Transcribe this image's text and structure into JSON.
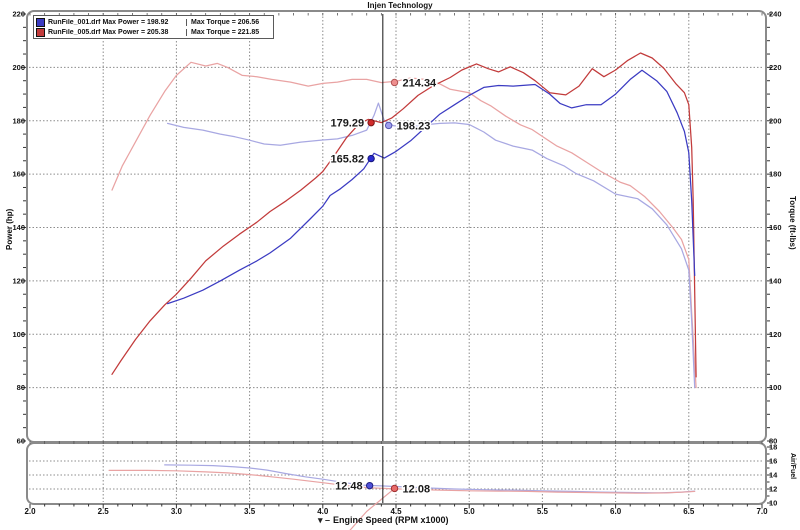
{
  "title": "Injen Technology",
  "legend": {
    "entries": [
      {
        "file_power": "RunFile_001.drf Max Power = 198.92",
        "torque": "Max Torque = 206.56",
        "color": "#3b3bc2",
        "max_power": 198.92,
        "max_torque": 206.56
      },
      {
        "file_power": "RunFile_005.drf Max Power = 205.38",
        "torque": "Max Torque = 221.85",
        "color": "#c23b3b",
        "max_power": 205.38,
        "max_torque": 221.85
      }
    ]
  },
  "axes": {
    "power_label": "Power (hp)",
    "torque_label": "Torque (ft-lbs)",
    "af_label": "Air/Fuel",
    "x_label": "Engine Speed (RPM x1000)",
    "cursor_prefix": "▾ –"
  },
  "cursor": {
    "rpm": 4.41
  },
  "chart_data": {
    "type": "line",
    "x_axis": {
      "label": "Engine Speed (RPM x1000)",
      "range": [
        2.0,
        7.0
      ],
      "ticks": [
        "2.0",
        "2.5",
        "3.0",
        "3.5",
        "4.0",
        "4.5",
        "5.0",
        "5.5",
        "6.0",
        "6.5",
        "7.0"
      ]
    },
    "main_panel": {
      "power_axis": {
        "label": "Power (hp)",
        "range": [
          60,
          220
        ],
        "ticks": [
          220,
          200,
          180,
          160,
          140,
          120,
          100,
          80,
          60
        ]
      },
      "torque_axis": {
        "label": "Torque (ft-lbs)",
        "range": [
          80,
          240
        ],
        "ticks": [
          240,
          220,
          200,
          180,
          160,
          140,
          120,
          100,
          80
        ]
      },
      "grid": "dashed",
      "series": [
        {
          "name": "red_torque",
          "run": "RunFile_005.drf",
          "axis": "torque",
          "color": "#e9a3a3",
          "points": [
            [
              2.56,
              174
            ],
            [
              2.63,
              183
            ],
            [
              2.72,
              192
            ],
            [
              2.82,
              202
            ],
            [
              2.92,
              211
            ],
            [
              3.0,
              217
            ],
            [
              3.1,
              221.9
            ],
            [
              3.2,
              220.5
            ],
            [
              3.28,
              221.5
            ],
            [
              3.35,
              220
            ],
            [
              3.45,
              217
            ],
            [
              3.55,
              216.5
            ],
            [
              3.65,
              215.5
            ],
            [
              3.78,
              214.5
            ],
            [
              3.9,
              213
            ],
            [
              4.0,
              214
            ],
            [
              4.1,
              214.5
            ],
            [
              4.2,
              215.5
            ],
            [
              4.3,
              215.5
            ],
            [
              4.4,
              214.3
            ],
            [
              4.5,
              214.8
            ],
            [
              4.6,
              216
            ],
            [
              4.7,
              215.5
            ],
            [
              4.8,
              213.8
            ],
            [
              4.87,
              211.8
            ],
            [
              5.0,
              210.5
            ],
            [
              5.08,
              207.5
            ],
            [
              5.15,
              205.5
            ],
            [
              5.25,
              201.7
            ],
            [
              5.35,
              198.5
            ],
            [
              5.43,
              196.7
            ],
            [
              5.53,
              193
            ],
            [
              5.6,
              190.5
            ],
            [
              5.7,
              188
            ],
            [
              5.8,
              184.5
            ],
            [
              5.9,
              181
            ],
            [
              6.03,
              177
            ],
            [
              6.1,
              175.7
            ],
            [
              6.2,
              171.5
            ],
            [
              6.3,
              166
            ],
            [
              6.39,
              160
            ],
            [
              6.45,
              155.5
            ],
            [
              6.5,
              148
            ],
            [
              6.52,
              128
            ],
            [
              6.55,
              100
            ]
          ]
        },
        {
          "name": "blue_torque",
          "run": "RunFile_001.drf",
          "axis": "torque",
          "color": "#a8a8e2",
          "points": [
            [
              2.94,
              199
            ],
            [
              3.05,
              197.5
            ],
            [
              3.18,
              196.5
            ],
            [
              3.3,
              195
            ],
            [
              3.4,
              194
            ],
            [
              3.5,
              192.7
            ],
            [
              3.6,
              191.3
            ],
            [
              3.71,
              190.8
            ],
            [
              3.85,
              192
            ],
            [
              4.0,
              192.8
            ],
            [
              4.1,
              193.2
            ],
            [
              4.2,
              194.5
            ],
            [
              4.3,
              196.5
            ],
            [
              4.35,
              202
            ],
            [
              4.38,
              206.6
            ],
            [
              4.42,
              200
            ],
            [
              4.48,
              198.2
            ],
            [
              4.58,
              197.5
            ],
            [
              4.7,
              198.5
            ],
            [
              4.8,
              199
            ],
            [
              4.9,
              199.2
            ],
            [
              5.0,
              198.6
            ],
            [
              5.1,
              195.8
            ],
            [
              5.18,
              192.7
            ],
            [
              5.3,
              190.5
            ],
            [
              5.43,
              189
            ],
            [
              5.53,
              185.8
            ],
            [
              5.65,
              183
            ],
            [
              5.73,
              180.2
            ],
            [
              5.85,
              177.5
            ],
            [
              6.0,
              172.5
            ],
            [
              6.15,
              170.8
            ],
            [
              6.25,
              167
            ],
            [
              6.35,
              161
            ],
            [
              6.45,
              152
            ],
            [
              6.5,
              144
            ],
            [
              6.52,
              125
            ],
            [
              6.54,
              100
            ]
          ]
        },
        {
          "name": "red_power",
          "run": "RunFile_005.drf",
          "axis": "power",
          "color": "#c23b3b",
          "points": [
            [
              2.56,
              85
            ],
            [
              2.62,
              90
            ],
            [
              2.72,
              98
            ],
            [
              2.82,
              105
            ],
            [
              2.92,
              111
            ],
            [
              3.0,
              115
            ],
            [
              3.1,
              121
            ],
            [
              3.2,
              127.5
            ],
            [
              3.32,
              133
            ],
            [
              3.43,
              137.5
            ],
            [
              3.55,
              142
            ],
            [
              3.64,
              146
            ],
            [
              3.75,
              150
            ],
            [
              3.85,
              154
            ],
            [
              3.95,
              158.5
            ],
            [
              4.0,
              161
            ],
            [
              4.08,
              167
            ],
            [
              4.16,
              173.5
            ],
            [
              4.25,
              179
            ],
            [
              4.31,
              180.5
            ],
            [
              4.4,
              179.3
            ],
            [
              4.47,
              181
            ],
            [
              4.55,
              184.5
            ],
            [
              4.65,
              189.5
            ],
            [
              4.75,
              193
            ],
            [
              4.87,
              196.2
            ],
            [
              4.95,
              199
            ],
            [
              5.05,
              201.3
            ],
            [
              5.13,
              199.5
            ],
            [
              5.2,
              198.3
            ],
            [
              5.28,
              200.2
            ],
            [
              5.37,
              198
            ],
            [
              5.45,
              195
            ],
            [
              5.55,
              190.5
            ],
            [
              5.66,
              189.7
            ],
            [
              5.75,
              193
            ],
            [
              5.84,
              199.5
            ],
            [
              5.92,
              196.5
            ],
            [
              6.0,
              199
            ],
            [
              6.08,
              202.5
            ],
            [
              6.17,
              205.4
            ],
            [
              6.25,
              203.5
            ],
            [
              6.33,
              199.6
            ],
            [
              6.41,
              194
            ],
            [
              6.47,
              190.5
            ],
            [
              6.5,
              186
            ],
            [
              6.52,
              170
            ],
            [
              6.53,
              150
            ],
            [
              6.55,
              84
            ]
          ]
        },
        {
          "name": "blue_power",
          "run": "RunFile_001.drf",
          "axis": "power",
          "color": "#3b3bc2",
          "points": [
            [
              2.94,
              111.5
            ],
            [
              3.05,
              113.5
            ],
            [
              3.18,
              116.5
            ],
            [
              3.3,
              120
            ],
            [
              3.43,
              124
            ],
            [
              3.55,
              127.5
            ],
            [
              3.64,
              130.5
            ],
            [
              3.78,
              136
            ],
            [
              3.91,
              143
            ],
            [
              4.0,
              148
            ],
            [
              4.05,
              152
            ],
            [
              4.12,
              154.5
            ],
            [
              4.2,
              158
            ],
            [
              4.28,
              162
            ],
            [
              4.35,
              167.8
            ],
            [
              4.42,
              166
            ],
            [
              4.5,
              168.5
            ],
            [
              4.6,
              172.5
            ],
            [
              4.7,
              177.5
            ],
            [
              4.8,
              182.5
            ],
            [
              4.9,
              186
            ],
            [
              5.0,
              189.5
            ],
            [
              5.1,
              192.5
            ],
            [
              5.2,
              193.2
            ],
            [
              5.3,
              193
            ],
            [
              5.45,
              193.6
            ],
            [
              5.55,
              190
            ],
            [
              5.62,
              186.5
            ],
            [
              5.7,
              184.8
            ],
            [
              5.8,
              186
            ],
            [
              5.9,
              186
            ],
            [
              6.0,
              190
            ],
            [
              6.1,
              195.5
            ],
            [
              6.18,
              198.9
            ],
            [
              6.28,
              195
            ],
            [
              6.35,
              191
            ],
            [
              6.42,
              183
            ],
            [
              6.47,
              176
            ],
            [
              6.5,
              168
            ],
            [
              6.52,
              150
            ],
            [
              6.54,
              122
            ]
          ]
        }
      ],
      "markers": [
        {
          "series": "red_power",
          "rpm": 4.33,
          "value": 179.29,
          "label": "179.29",
          "side": "left",
          "axis": "power",
          "color": "#d12b2b",
          "edge": "#7a1515"
        },
        {
          "series": "blue_power",
          "rpm": 4.33,
          "value": 165.82,
          "label": "165.82",
          "side": "left",
          "axis": "power",
          "color": "#2b2bd1",
          "edge": "#15157a"
        },
        {
          "series": "red_torque",
          "rpm": 4.49,
          "value": 214.34,
          "label": "214.34",
          "side": "right",
          "axis": "torque",
          "color": "#ef8f8f",
          "edge": "#b05555"
        },
        {
          "series": "blue_torque",
          "rpm": 4.45,
          "value": 198.23,
          "label": "198.23",
          "side": "right",
          "axis": "torque",
          "color": "#9f9fef",
          "edge": "#5555b0"
        }
      ]
    },
    "af_panel": {
      "af_axis": {
        "label": "Air/Fuel",
        "range": [
          10,
          18
        ],
        "ticks": [
          18,
          16,
          14,
          12,
          10
        ]
      },
      "series": [
        {
          "name": "blue_af",
          "run": "RunFile_001.drf",
          "color": "#a8a8e2",
          "points": [
            [
              2.92,
              15.45
            ],
            [
              3.1,
              15.4
            ],
            [
              3.25,
              15.35
            ],
            [
              3.4,
              15.15
            ],
            [
              3.5,
              15.0
            ],
            [
              3.62,
              14.7
            ],
            [
              3.75,
              14.2
            ],
            [
              3.88,
              13.75
            ],
            [
              4.0,
              13.4
            ],
            [
              4.15,
              12.9
            ],
            [
              4.27,
              12.55
            ],
            [
              4.4,
              12.45
            ],
            [
              4.55,
              12.3
            ],
            [
              4.7,
              12.15
            ],
            [
              4.9,
              12.0
            ],
            [
              5.1,
              11.9
            ],
            [
              5.3,
              11.85
            ],
            [
              5.5,
              11.75
            ],
            [
              5.7,
              11.65
            ],
            [
              5.9,
              11.55
            ],
            [
              6.1,
              11.5
            ],
            [
              6.3,
              11.45
            ],
            [
              6.45,
              11.55
            ],
            [
              6.54,
              11.7
            ]
          ]
        },
        {
          "name": "red_af",
          "run": "RunFile_005.drf",
          "color": "#e9a3a3",
          "points": [
            [
              2.54,
              14.65
            ],
            [
              2.8,
              14.65
            ],
            [
              3.0,
              14.6
            ],
            [
              3.2,
              14.45
            ],
            [
              3.35,
              14.3
            ],
            [
              3.5,
              14.05
            ],
            [
              3.65,
              13.75
            ],
            [
              3.8,
              13.4
            ],
            [
              4.0,
              12.9
            ],
            [
              4.15,
              12.5
            ],
            [
              4.3,
              12.2
            ],
            [
              4.45,
              12.05
            ],
            [
              4.6,
              11.95
            ],
            [
              4.8,
              11.85
            ],
            [
              5.0,
              11.75
            ],
            [
              5.2,
              11.7
            ],
            [
              5.4,
              11.65
            ],
            [
              5.6,
              11.55
            ],
            [
              5.8,
              11.5
            ],
            [
              6.0,
              11.45
            ],
            [
              6.2,
              11.4
            ],
            [
              6.35,
              11.45
            ],
            [
              6.5,
              11.6
            ],
            [
              6.54,
              11.65
            ]
          ]
        }
      ],
      "markers": [
        {
          "series": "blue_af",
          "rpm": 4.32,
          "value": 12.48,
          "label": "12.48",
          "side": "left",
          "color": "#5050d8",
          "edge": "#202080"
        },
        {
          "series": "red_af",
          "rpm": 4.49,
          "value": 12.08,
          "label": "12.08",
          "side": "right",
          "color": "#e86a6a",
          "edge": "#a03030"
        }
      ],
      "glitch_line": {
        "color": "#e9a3a3",
        "points": [
          [
            4.16,
            5.5
          ],
          [
            4.3,
            8.8
          ],
          [
            4.49,
            12.08
          ]
        ]
      }
    }
  }
}
